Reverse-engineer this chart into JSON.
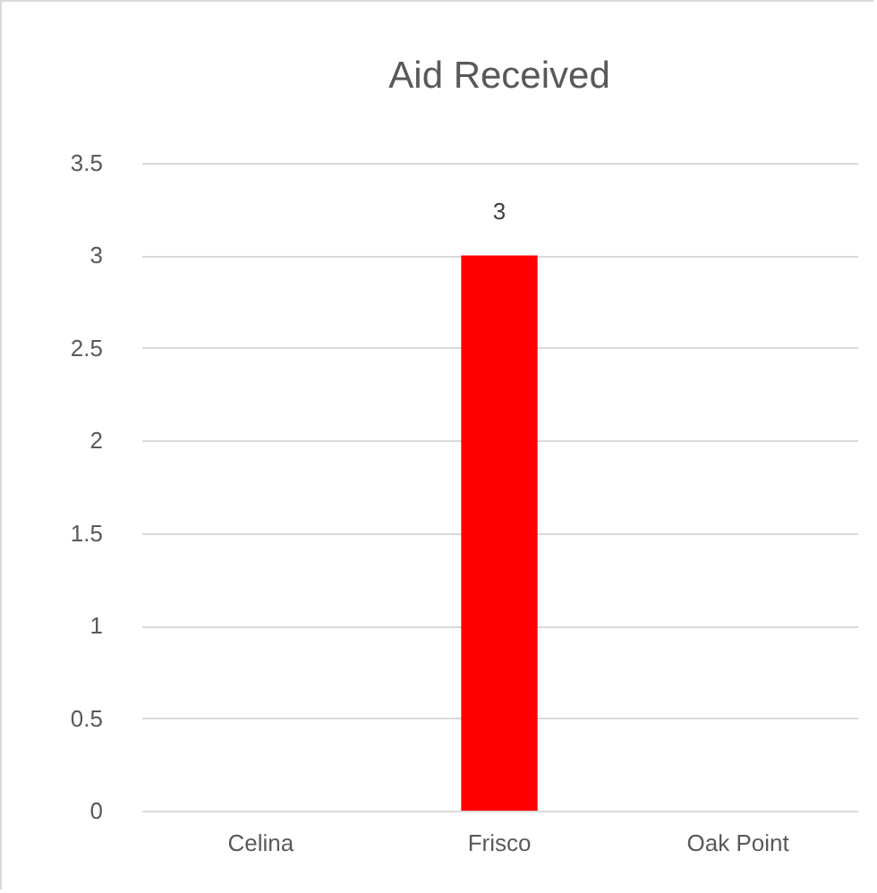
{
  "chart_data": {
    "type": "bar",
    "title": "Aid Received",
    "categories": [
      "Celina",
      "Frisco",
      "Oak Point"
    ],
    "values": [
      0,
      3,
      0
    ],
    "color": "#ff0000",
    "value_labels": [
      null,
      "3",
      null
    ],
    "ylim": [
      0,
      3.5
    ],
    "yticks": [
      0,
      0.5,
      1,
      1.5,
      2,
      2.5,
      3,
      3.5
    ],
    "grid": "y"
  }
}
